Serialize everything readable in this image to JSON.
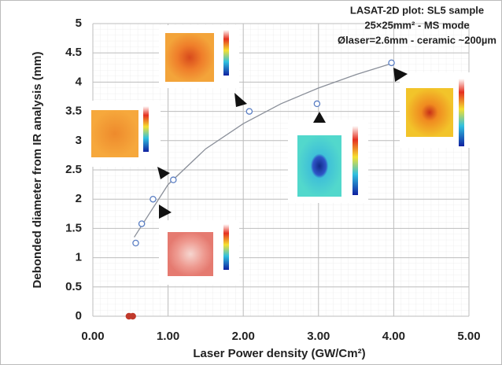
{
  "chart_data": {
    "type": "scatter",
    "title_lines": [
      "LASAT-2D plot: SL5 sample",
      "25×25mm² - MS mode",
      "Ølaser=2.6mm - ceramic ~200µm"
    ],
    "x_label": "Laser Power density (GW/Cm²)",
    "y_label": "Debonded diameter from IR analysis (mm)",
    "xlim": [
      0,
      5
    ],
    "ylim": [
      0,
      5
    ],
    "xticks": [
      {
        "value": 0,
        "label": "0.00"
      },
      {
        "value": 1,
        "label": "1.00"
      },
      {
        "value": 2,
        "label": "2.00"
      },
      {
        "value": 3,
        "label": "3.00"
      },
      {
        "value": 4,
        "label": "4.00"
      },
      {
        "value": 5,
        "label": "5.00"
      }
    ],
    "yticks": [
      0,
      0.5,
      1,
      1.5,
      2,
      2.5,
      3,
      3.5,
      4,
      4.5,
      5
    ],
    "grid": true,
    "series": [
      {
        "color": "#5b7fc4",
        "marker": "open",
        "x": [
          0.57,
          0.65,
          0.8,
          1.07,
          2.08,
          2.98,
          3.97
        ],
        "values": [
          1.25,
          1.58,
          2.0,
          2.33,
          3.5,
          3.63,
          4.33
        ]
      },
      {
        "color": "#c0392b",
        "marker": "filled",
        "x": [
          0.48,
          0.53
        ],
        "values": [
          0,
          0
        ]
      },
      {
        "color": "#8a8f99",
        "marker": "line",
        "x": [
          0.55,
          1,
          1.5,
          2,
          2.5,
          3,
          3.5,
          4
        ],
        "values": [
          1.35,
          2.25,
          2.86,
          3.29,
          3.63,
          3.9,
          4.13,
          4.33
        ]
      }
    ]
  }
}
